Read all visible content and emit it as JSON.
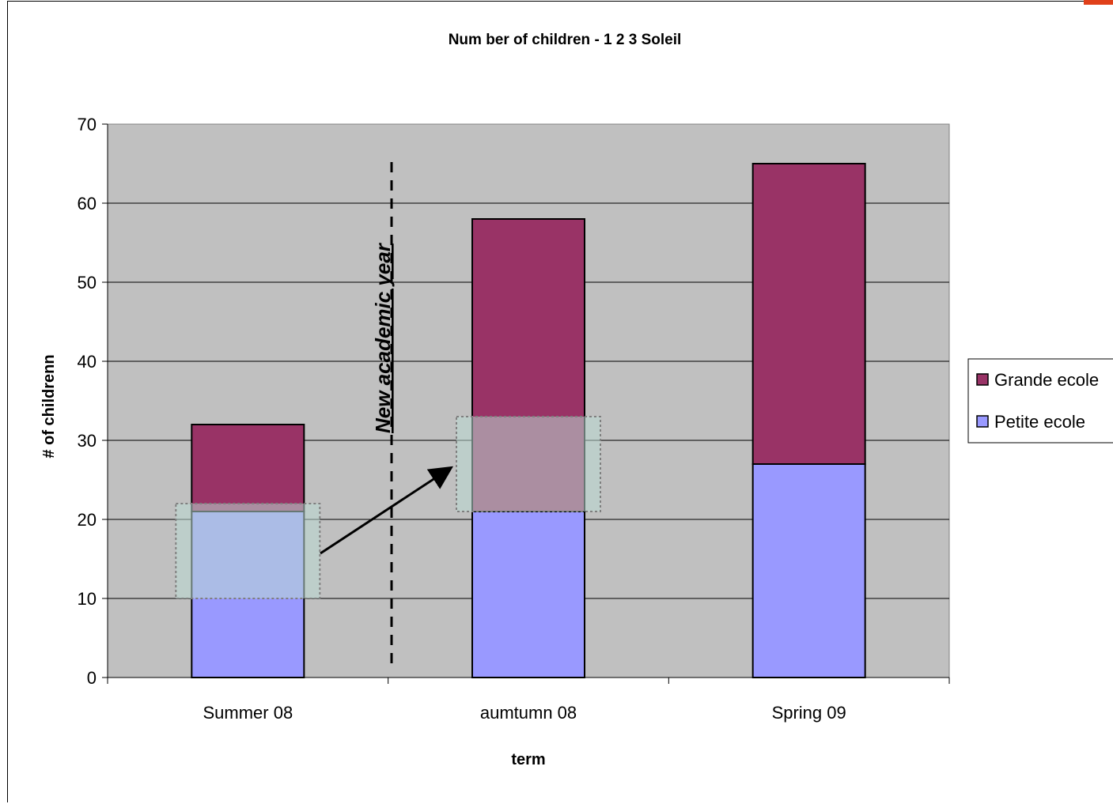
{
  "chart_data": {
    "type": "bar",
    "stacked": true,
    "title": "Num ber of children - 1 2 3 Soleil",
    "xlabel": "term",
    "ylabel": "# of childrenn",
    "categories": [
      "Summer 08",
      "aumtumn 08",
      "Spring 09"
    ],
    "series": [
      {
        "name": "Petite ecole",
        "values": [
          21,
          21,
          27
        ],
        "color": "#9999ff"
      },
      {
        "name": "Grande ecole",
        "values": [
          11,
          37,
          38
        ],
        "color": "#993366"
      }
    ],
    "ylim": [
      0,
      70
    ],
    "yticks": [
      "0",
      "10",
      "20",
      "30",
      "40",
      "50",
      "60",
      "70"
    ],
    "grid": true,
    "plot_background": "#c0c0c0",
    "legend_position": "right",
    "legend_order": [
      "Grande ecole",
      "Petite ecole"
    ],
    "annotations": {
      "divider_label": "New academic year",
      "highlight_color": "#b9d8d2",
      "highlight_ranges": [
        [
          10,
          22
        ],
        [
          21,
          33
        ]
      ]
    }
  }
}
